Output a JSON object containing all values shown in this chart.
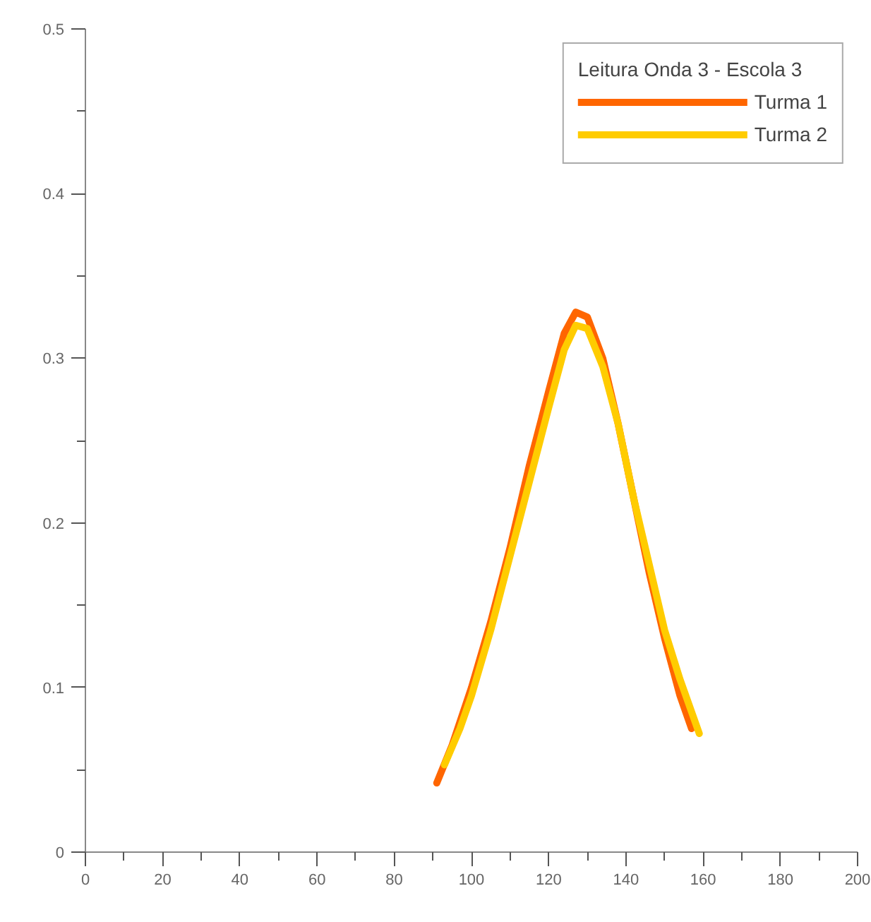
{
  "chart_data": {
    "type": "line",
    "legend_title": "Leitura Onda 3 - Escola 3",
    "series": [
      {
        "name": "Turma 1",
        "color": "#ff6600",
        "x": [
          91,
          95,
          100,
          105,
          110,
          115,
          120,
          124,
          127,
          130,
          134,
          138,
          142,
          146,
          150,
          154,
          157
        ],
        "values": [
          0.042,
          0.065,
          0.1,
          0.14,
          0.185,
          0.235,
          0.28,
          0.315,
          0.328,
          0.325,
          0.3,
          0.26,
          0.215,
          0.17,
          0.13,
          0.095,
          0.075
        ]
      },
      {
        "name": "Turma 2",
        "color": "#ffcc00",
        "x": [
          93,
          97,
          100,
          105,
          110,
          115,
          120,
          124,
          127,
          130,
          134,
          138,
          142,
          146,
          150,
          154,
          159
        ],
        "values": [
          0.053,
          0.075,
          0.095,
          0.135,
          0.18,
          0.225,
          0.27,
          0.305,
          0.32,
          0.318,
          0.295,
          0.26,
          0.215,
          0.175,
          0.135,
          0.105,
          0.072
        ]
      }
    ],
    "xlim": [
      0,
      200
    ],
    "xticks": [
      0,
      20,
      40,
      60,
      80,
      100,
      120,
      140,
      160,
      180,
      200
    ],
    "ylim": [
      0,
      0.5
    ],
    "yticks": [
      0,
      0.1,
      0.2,
      0.3,
      0.4,
      0.5
    ],
    "grid": false,
    "legend": "top right",
    "marker": "none",
    "line_style": "solid"
  }
}
